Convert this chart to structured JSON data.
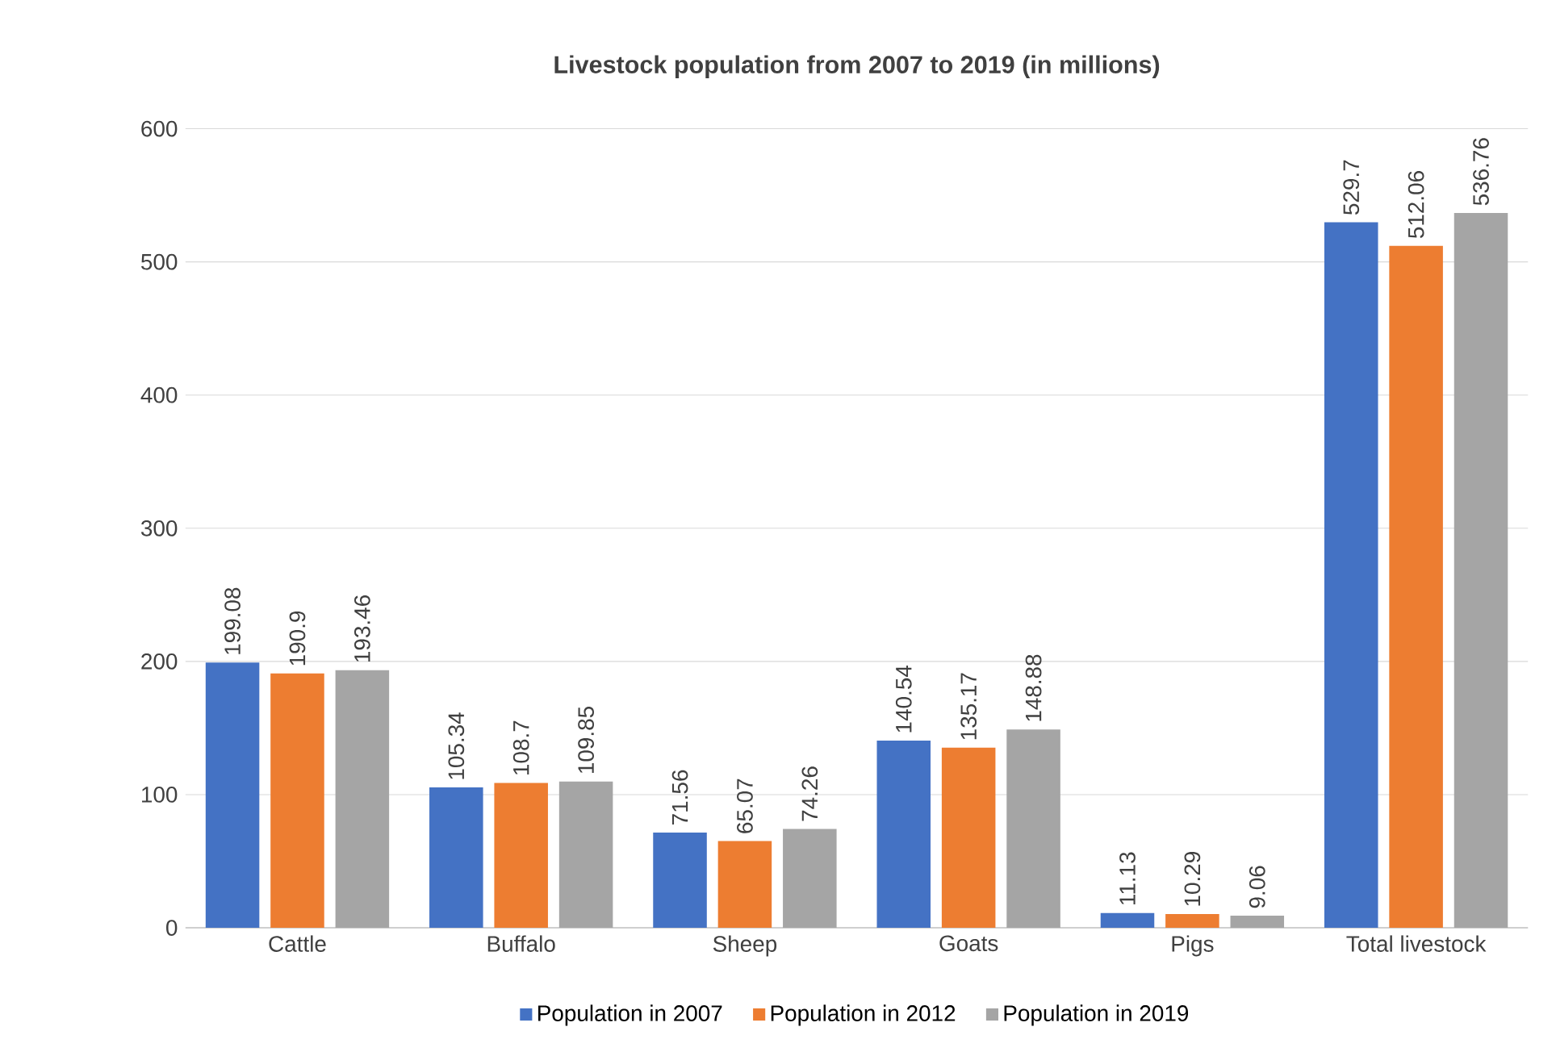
{
  "chart_data": {
    "type": "bar",
    "title": "Livestock population from 2007 to 2019 (in millions)",
    "categories": [
      "Cattle",
      "Buffalo",
      "Sheep",
      "Goats",
      "Pigs",
      "Total livestock"
    ],
    "series": [
      {
        "name": "Population in 2007",
        "color": "#4472c4",
        "values": [
          199.08,
          105.34,
          71.56,
          140.54,
          11.13,
          529.7
        ]
      },
      {
        "name": "Population in 2012",
        "color": "#ed7d31",
        "values": [
          190.9,
          108.7,
          65.07,
          135.17,
          10.29,
          512.06
        ]
      },
      {
        "name": "Population in 2019",
        "color": "#a5a5a5",
        "values": [
          193.46,
          109.85,
          74.26,
          148.88,
          9.06,
          536.76
        ]
      }
    ],
    "ylim": [
      0,
      600
    ],
    "yticks": [
      0,
      100,
      200,
      300,
      400,
      500,
      600
    ],
    "grid": "y",
    "legend": "bottom",
    "data_labels": true
  }
}
